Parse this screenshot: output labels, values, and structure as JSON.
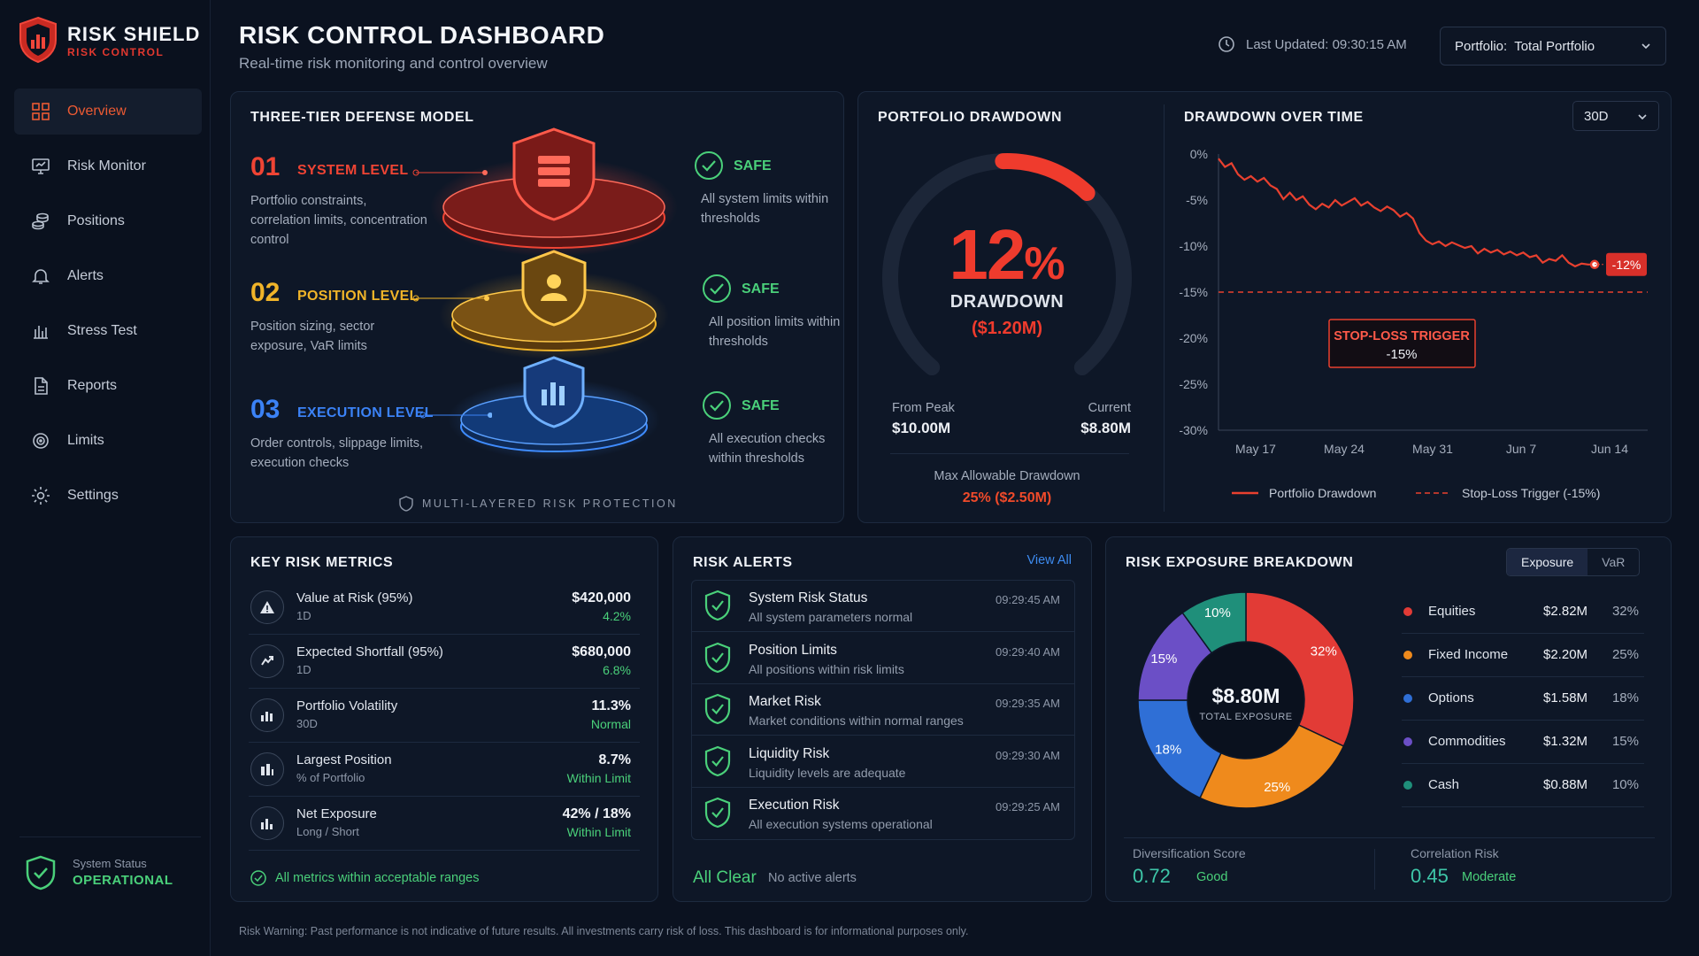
{
  "brand": {
    "name": "RISK SHIELD",
    "sub": "RISK CONTROL"
  },
  "nav": [
    {
      "label": "Overview",
      "icon": "grid-icon",
      "active": true
    },
    {
      "label": "Risk Monitor",
      "icon": "monitor-icon"
    },
    {
      "label": "Positions",
      "icon": "coins-icon"
    },
    {
      "label": "Alerts",
      "icon": "bell-icon"
    },
    {
      "label": "Stress Test",
      "icon": "stress-test-icon"
    },
    {
      "label": "Reports",
      "icon": "document-icon"
    },
    {
      "label": "Limits",
      "icon": "target-icon"
    },
    {
      "label": "Settings",
      "icon": "gear-icon"
    }
  ],
  "system_status": {
    "label": "System Status",
    "value": "OPERATIONAL"
  },
  "header": {
    "title": "RISK CONTROL DASHBOARD",
    "subtitle": "Real-time risk monitoring and control overview",
    "last_updated": "Last Updated: 09:30:15 AM",
    "portfolio_label": "Portfolio:",
    "portfolio_value": "Total Portfolio"
  },
  "defense": {
    "title": "THREE-TIER DEFENSE MODEL",
    "tiers": [
      {
        "num": "01",
        "name": "SYSTEM LEVEL",
        "desc": "Portfolio constraints, correlation limits, concentration control",
        "status": "SAFE",
        "status_desc": "All system limits within thresholds",
        "color": "#ef4434"
      },
      {
        "num": "02",
        "name": "POSITION LEVEL",
        "desc": "Position sizing, sector exposure, VaR limits",
        "status": "SAFE",
        "status_desc": "All position limits within thresholds",
        "color": "#f0b429"
      },
      {
        "num": "03",
        "name": "EXECUTION LEVEL",
        "desc": "Order controls, slippage limits, execution checks",
        "status": "SAFE",
        "status_desc": "All execution checks within thresholds",
        "color": "#3b82f6"
      }
    ],
    "footer": "MULTI-LAYERED RISK PROTECTION"
  },
  "drawdown": {
    "title": "PORTFOLIO DRAWDOWN",
    "value": "12",
    "unit": "%",
    "fraction": 0.12,
    "label": "DRAWDOWN",
    "amount": "($1.20M)",
    "from_peak_label": "From Peak",
    "from_peak_value": "$10.00M",
    "current_label": "Current",
    "current_value": "$8.80M",
    "max_label": "Max Allowable Drawdown",
    "max_value": "25% ($2.50M)"
  },
  "chart_data": {
    "type": "line",
    "title": "DRAWDOWN OVER TIME",
    "range_select": "30D",
    "x_ticks": [
      "May 17",
      "May 24",
      "May 31",
      "Jun 7",
      "Jun 14"
    ],
    "y_ticks": [
      "0%",
      "-5%",
      "-10%",
      "-15%",
      "-20%",
      "-25%",
      "-30%"
    ],
    "ylim": [
      -30,
      0
    ],
    "series": [
      {
        "name": "Portfolio Drawdown",
        "color": "#e8402f",
        "x": [
          0,
          0.5,
          1,
          1.5,
          2,
          2.5,
          3,
          3.5,
          4,
          4.5,
          5,
          5.5,
          6,
          6.5,
          7,
          7.5,
          8,
          8.5,
          9,
          9.5,
          10,
          10.5,
          11,
          11.5,
          12,
          12.5,
          13,
          13.5,
          14,
          14.5,
          15,
          15.5,
          16,
          16.5,
          17,
          17.5,
          18,
          18.5,
          19,
          19.5,
          20,
          20.5,
          21,
          21.5,
          22,
          22.5,
          23,
          23.5,
          24,
          24.5,
          25,
          25.5,
          26,
          26.5,
          27,
          27.5,
          28,
          28.5,
          29
        ],
        "values": [
          -0.5,
          -1.4,
          -1.0,
          -2.2,
          -2.8,
          -2.4,
          -3.0,
          -2.6,
          -3.4,
          -3.8,
          -4.9,
          -4.2,
          -5.0,
          -4.6,
          -5.5,
          -6.0,
          -5.4,
          -5.8,
          -5.0,
          -5.6,
          -5.2,
          -4.8,
          -5.6,
          -5.2,
          -5.8,
          -6.2,
          -5.7,
          -6.1,
          -6.8,
          -6.4,
          -7.0,
          -8.6,
          -9.4,
          -9.8,
          -9.5,
          -10.0,
          -9.6,
          -9.9,
          -10.2,
          -10.0,
          -10.8,
          -10.3,
          -10.7,
          -10.4,
          -10.9,
          -10.6,
          -11.0,
          -10.7,
          -11.2,
          -11.0,
          -11.8,
          -11.4,
          -11.6,
          -11.0,
          -11.8,
          -12.2,
          -11.9,
          -12.0,
          -12.0
        ]
      },
      {
        "name": "Stop-Loss Trigger (-15%)",
        "color": "#e8402f",
        "dashed": true,
        "value": -15
      }
    ],
    "current_label": "-12%",
    "trigger_label": "STOP-LOSS TRIGGER",
    "trigger_value": "-15%"
  },
  "metrics": {
    "title": "KEY RISK METRICS",
    "rows": [
      {
        "name": "Value at Risk (95%)",
        "period": "1D",
        "value": "$420,000",
        "sub": "4.2%",
        "icon": "warning-icon"
      },
      {
        "name": "Expected Shortfall (95%)",
        "period": "1D",
        "value": "$680,000",
        "sub": "6.8%",
        "icon": "shortfall-icon"
      },
      {
        "name": "Portfolio Volatility",
        "period": "30D",
        "value": "11.3%",
        "sub": "Normal",
        "icon": "volatility-icon"
      },
      {
        "name": "Largest Position",
        "period": "% of Portfolio",
        "value": "8.7%",
        "sub": "Within Limit",
        "icon": "position-icon"
      },
      {
        "name": "Net Exposure",
        "period": "Long / Short",
        "value": "42%  /  18%",
        "sub": "Within Limit",
        "icon": "exposure-icon"
      }
    ],
    "footer": "All metrics within acceptable ranges"
  },
  "alerts": {
    "title": "RISK ALERTS",
    "view_all": "View All",
    "rows": [
      {
        "title": "System Risk Status",
        "desc": "All system parameters normal",
        "time": "09:29:45 AM"
      },
      {
        "title": "Position Limits",
        "desc": "All positions within risk limits",
        "time": "09:29:40 AM"
      },
      {
        "title": "Market Risk",
        "desc": "Market conditions within normal ranges",
        "time": "09:29:35 AM"
      },
      {
        "title": "Liquidity Risk",
        "desc": "Liquidity levels are adequate",
        "time": "09:29:30 AM"
      },
      {
        "title": "Execution Risk",
        "desc": "All execution systems operational",
        "time": "09:29:25 AM"
      }
    ],
    "status": "All Clear",
    "status_desc": "No active alerts"
  },
  "exposure": {
    "title": "RISK EXPOSURE BREAKDOWN",
    "tabs": [
      "Exposure",
      "VaR"
    ],
    "total": "$8.80M",
    "total_label": "TOTAL EXPOSURE",
    "items": [
      {
        "name": "Equities",
        "value": "$2.82M",
        "pct": "32%",
        "share": 32,
        "color": "#e23b36"
      },
      {
        "name": "Fixed Income",
        "value": "$2.20M",
        "pct": "25%",
        "share": 25,
        "color": "#ef8a1c"
      },
      {
        "name": "Options",
        "value": "$1.58M",
        "pct": "18%",
        "share": 18,
        "color": "#2f6fd6"
      },
      {
        "name": "Commodities",
        "value": "$1.32M",
        "pct": "15%",
        "share": 15,
        "color": "#6b4fc6"
      },
      {
        "name": "Cash",
        "value": "$0.88M",
        "pct": "10%",
        "share": 10,
        "color": "#1f8f7a"
      }
    ],
    "div_label": "Diversification Score",
    "div_value": "0.72",
    "div_status": "Good",
    "corr_label": "Correlation Risk",
    "corr_value": "0.45",
    "corr_status": "Moderate"
  },
  "footer_warning": "Risk Warning: Past performance is not indicative of future results. All investments carry risk of loss. This dashboard is for informational purposes only."
}
